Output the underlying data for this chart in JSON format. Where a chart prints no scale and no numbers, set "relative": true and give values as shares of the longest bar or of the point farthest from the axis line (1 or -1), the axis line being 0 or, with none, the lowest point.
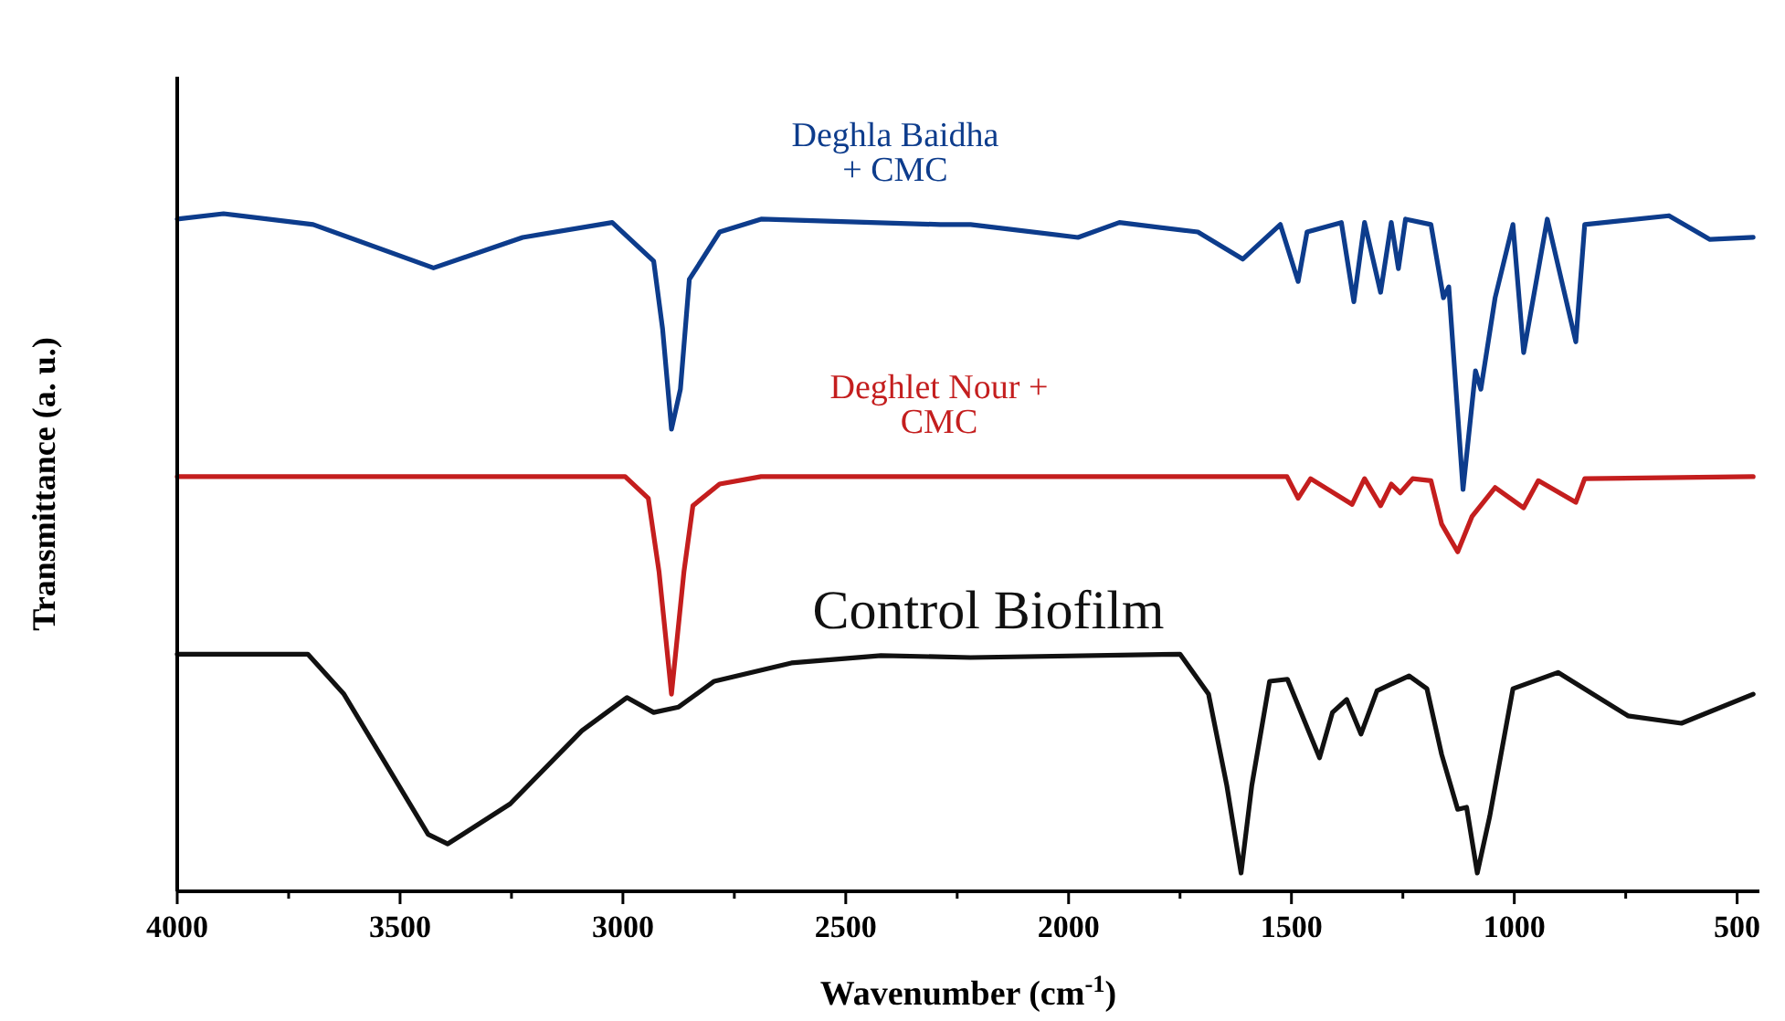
{
  "chart_data": {
    "type": "line",
    "relative": true,
    "xlabel": "Wavenumber (cm$^{-1}$)",
    "ylabel": "Transmittance (a. u.)",
    "xlim": [
      4000,
      450
    ],
    "xticks": [
      4000,
      {
        "value": 3750,
        "label": null
      },
      3500,
      {
        "value": 3250,
        "label": null
      },
      3000,
      {
        "value": 2750,
        "label": null
      },
      2500,
      {
        "value": 2250,
        "label": null
      },
      2000,
      {
        "value": 1750,
        "label": null
      },
      1500,
      {
        "value": 1250,
        "label": null
      },
      1000,
      {
        "value": 750,
        "label": null
      },
      500
    ],
    "grid": false,
    "marker": "none",
    "line_style": "solid",
    "series": [
      {
        "name": "Deghla Baidha\n+ CMC",
        "color": "#0d3c8c",
        "x": [
          4000,
          3896,
          3695,
          3425,
          3225,
          3024,
          2931,
          2911,
          2891,
          2871,
          2851,
          2783,
          2690,
          2288,
          2220,
          1979,
          1886,
          1710,
          1609,
          1525,
          1485,
          1465,
          1388,
          1360,
          1336,
          1300,
          1276,
          1260,
          1244,
          1187,
          1159,
          1147,
          1115,
          1087,
          1075,
          1043,
          1003,
          979,
          926,
          862,
          842,
          653,
          561,
          464
        ],
        "values": [
          0.992,
          1.0,
          0.984,
          0.92,
          0.965,
          0.987,
          0.93,
          0.83,
          0.682,
          0.741,
          0.903,
          0.973,
          0.992,
          0.984,
          0.984,
          0.965,
          0.987,
          0.973,
          0.933,
          0.984,
          0.9,
          0.973,
          0.987,
          0.87,
          0.987,
          0.884,
          0.987,
          0.919,
          0.992,
          0.984,
          0.876,
          0.892,
          0.593,
          0.768,
          0.741,
          0.876,
          0.984,
          0.795,
          0.992,
          0.811,
          0.984,
          0.997,
          0.962,
          0.965
        ]
      },
      {
        "name": "Deghlet Nour +\nCMC",
        "color": "#c41e1e",
        "x": [
          4000,
          2995,
          2943,
          2919,
          2891,
          2863,
          2843,
          2783,
          2690,
          1510,
          1485,
          1457,
          1364,
          1336,
          1300,
          1276,
          1256,
          1228,
          1187,
          1163,
          1127,
          1095,
          1043,
          979,
          946,
          862,
          842,
          464
        ],
        "values": [
          0.612,
          0.612,
          0.58,
          0.472,
          0.291,
          0.472,
          0.569,
          0.601,
          0.612,
          0.612,
          0.58,
          0.609,
          0.571,
          0.609,
          0.569,
          0.601,
          0.588,
          0.609,
          0.606,
          0.542,
          0.501,
          0.553,
          0.596,
          0.566,
          0.606,
          0.574,
          0.609,
          0.612
        ]
      },
      {
        "name": "Control Biofilm",
        "color": "#111111",
        "x": [
          4000,
          3707,
          3626,
          3437,
          3393,
          3253,
          3092,
          2991,
          2931,
          2875,
          2795,
          2622,
          2421,
          2220,
          1750,
          1686,
          1645,
          1613,
          1589,
          1549,
          1509,
          1437,
          1408,
          1376,
          1344,
          1308,
          1236,
          1196,
          1163,
          1127,
          1107,
          1083,
          1055,
          1003,
          902,
          745,
          625,
          464
        ],
        "values": [
          0.35,
          0.35,
          0.291,
          0.084,
          0.07,
          0.129,
          0.237,
          0.286,
          0.264,
          0.272,
          0.31,
          0.337,
          0.348,
          0.345,
          0.35,
          0.291,
          0.156,
          0.027,
          0.156,
          0.31,
          0.313,
          0.197,
          0.264,
          0.283,
          0.232,
          0.296,
          0.318,
          0.299,
          0.202,
          0.121,
          0.124,
          0.027,
          0.111,
          0.299,
          0.323,
          0.259,
          0.248,
          0.291
        ]
      }
    ]
  }
}
